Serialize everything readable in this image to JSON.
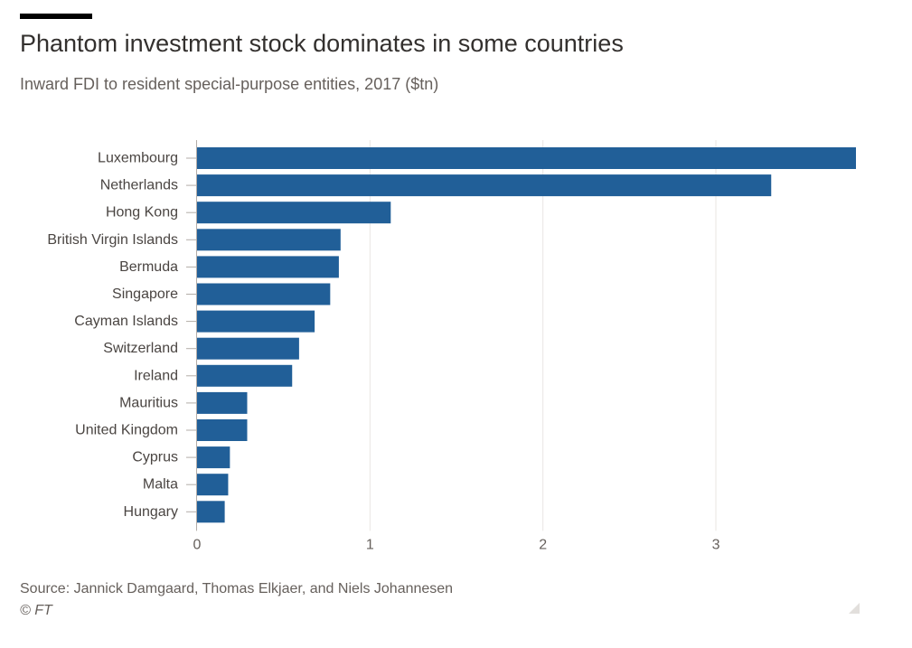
{
  "header": {
    "title": "Phantom investment stock dominates in some countries",
    "subtitle": "Inward FDI to resident special-purpose entities, 2017 ($tn)"
  },
  "footer": {
    "source": "Source: Jannick Damgaard, Thomas Elkjaer, and Niels Johannesen",
    "copyright": "© FT"
  },
  "chart_data": {
    "type": "bar",
    "orientation": "horizontal",
    "title": "Phantom investment stock dominates in some countries",
    "subtitle": "Inward FDI to resident special-purpose entities, 2017 ($tn)",
    "xlabel": "",
    "ylabel": "",
    "categories": [
      "Luxembourg",
      "Netherlands",
      "Hong Kong",
      "British Virgin Islands",
      "Bermuda",
      "Singapore",
      "Cayman Islands",
      "Switzerland",
      "Ireland",
      "Mauritius",
      "United Kingdom",
      "Cyprus",
      "Malta",
      "Hungary"
    ],
    "values": [
      3.81,
      3.32,
      1.12,
      0.83,
      0.82,
      0.77,
      0.68,
      0.59,
      0.55,
      0.29,
      0.29,
      0.19,
      0.18,
      0.16
    ],
    "xlim": [
      0,
      3.81
    ],
    "xticks": [
      "0",
      "1",
      "2",
      "3"
    ],
    "tick_values": [
      0,
      1,
      2,
      3
    ],
    "grid": true,
    "colors": {
      "bar": "#215f98",
      "grid": "#e9e6e3",
      "axis": "#b3ada8",
      "tick_label": "#66605c",
      "category_label": "#4a4542"
    }
  }
}
